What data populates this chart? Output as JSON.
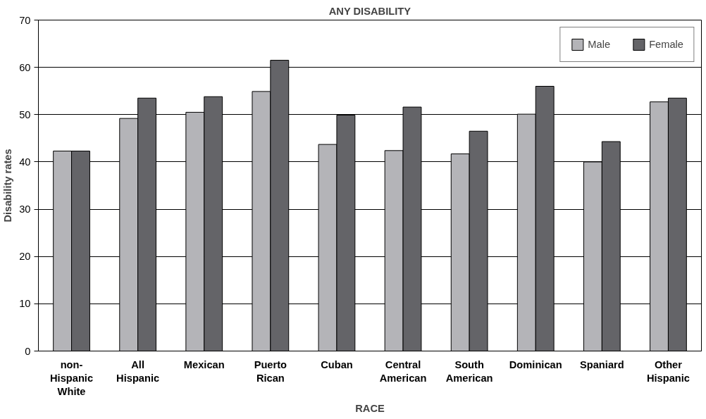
{
  "chart_data": {
    "type": "bar",
    "title": "ANY DISABILITY",
    "xlabel": "RACE",
    "ylabel": "Disability rates",
    "categories": [
      "non-\nHispanic\nWhite",
      "All\nHispanic",
      "Mexican",
      "Puerto\nRican",
      "Cuban",
      "Central\nAmerican",
      "South\nAmerican",
      "Dominican",
      "Spaniard",
      "Other\nHispanic"
    ],
    "series": [
      {
        "name": "Male",
        "color": "#b4b4b8",
        "values": [
          42.3,
          49.2,
          50.5,
          54.9,
          43.7,
          42.4,
          41.7,
          50.1,
          40.0,
          52.7
        ]
      },
      {
        "name": "Female",
        "color": "#646468",
        "values": [
          42.3,
          53.5,
          53.8,
          61.5,
          49.9,
          51.6,
          46.5,
          56.0,
          44.3,
          53.5
        ]
      }
    ],
    "ylim": [
      0,
      70
    ],
    "yticks": [
      0,
      10,
      20,
      30,
      40,
      50,
      60,
      70
    ],
    "grid": "y",
    "legend": "top right"
  }
}
